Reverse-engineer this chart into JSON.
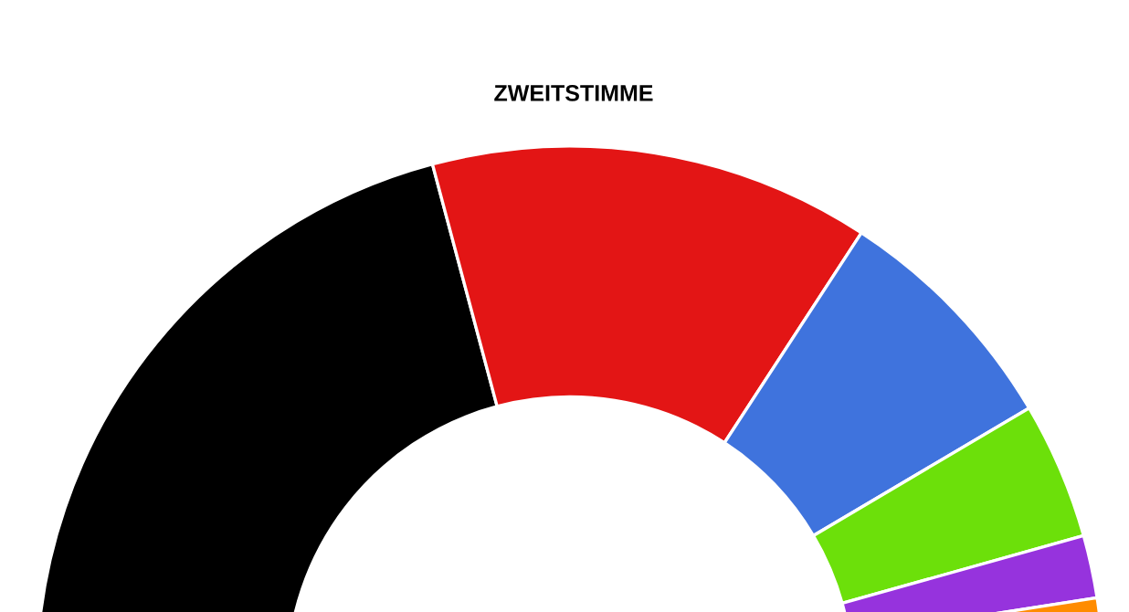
{
  "chart_data": {
    "type": "donut",
    "title": "ZWEITSTIMME",
    "categories": [
      null,
      null,
      null,
      null,
      null,
      null
    ],
    "values": [
      41.7,
      26.7,
      14.6,
      8.3,
      3.8,
      4.9
    ],
    "colors": [
      "#000000",
      "#e31515",
      "#3f73dd",
      "#6ce00a",
      "#9633dd",
      "#ff8c00"
    ]
  }
}
